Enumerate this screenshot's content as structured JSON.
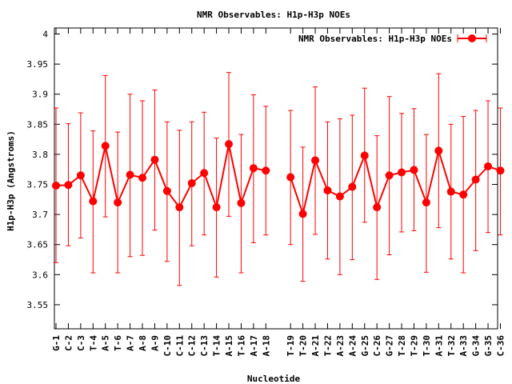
{
  "chart_data": {
    "type": "line",
    "title": "NMR Observables: H1p-H3p NOEs",
    "xlabel": "Nucleotide",
    "ylabel": "H1p-H3p (Angstroms)",
    "ylim": [
      3.51,
      4.01
    ],
    "y_ticks": [
      "3.55",
      "3.6",
      "3.65",
      "3.7",
      "3.75",
      "3.8",
      "3.85",
      "3.9",
      "3.95",
      "4"
    ],
    "legend": {
      "label": "NMR Observables: H1p-H3p NOEs",
      "position": "top-right"
    },
    "grid": false,
    "colors": {
      "series": "#ff0000",
      "axis": "#000000"
    },
    "categories": [
      "G-1",
      "C-2",
      "C-3",
      "T-4",
      "A-5",
      "T-6",
      "A-7",
      "A-8",
      "A-9",
      "C-10",
      "C-11",
      "C-12",
      "C-13",
      "T-14",
      "A-15",
      "T-16",
      "A-17",
      "A-18",
      "T-19",
      "T-20",
      "A-21",
      "T-22",
      "A-23",
      "A-24",
      "G-25",
      "C-26",
      "G-27",
      "T-28",
      "T-29",
      "T-30",
      "A-31",
      "T-32",
      "A-33",
      "G-34",
      "G-35",
      "C-36"
    ],
    "series": [
      {
        "values": [
          3.748,
          3.749,
          3.765,
          3.722,
          3.814,
          3.72,
          3.766,
          3.761,
          3.791,
          3.739,
          3.712,
          3.752,
          3.769,
          3.712,
          3.817,
          3.719,
          3.777,
          3.773,
          3.762,
          3.701,
          3.79,
          3.74,
          3.73,
          3.746,
          3.798,
          3.712,
          3.765,
          3.77,
          3.774,
          3.72,
          3.806,
          3.738,
          3.733,
          3.758,
          3.78,
          3.773
        ],
        "err_low": [
          3.62,
          3.648,
          3.661,
          3.603,
          3.696,
          3.603,
          3.63,
          3.632,
          3.674,
          3.622,
          3.582,
          3.648,
          3.666,
          3.596,
          3.697,
          3.603,
          3.653,
          3.666,
          3.65,
          3.589,
          3.667,
          3.626,
          3.6,
          3.625,
          3.687,
          3.592,
          3.633,
          3.671,
          3.673,
          3.604,
          3.678,
          3.626,
          3.603,
          3.64,
          3.67,
          3.666
        ],
        "err_high": [
          3.877,
          3.851,
          3.869,
          3.839,
          3.931,
          3.837,
          3.9,
          3.889,
          3.907,
          3.854,
          3.84,
          3.854,
          3.87,
          3.827,
          3.936,
          3.833,
          3.899,
          3.88,
          3.873,
          3.812,
          3.912,
          3.854,
          3.859,
          3.865,
          3.91,
          3.831,
          3.896,
          3.868,
          3.876,
          3.833,
          3.934,
          3.85,
          3.863,
          3.873,
          3.889,
          3.877
        ]
      }
    ]
  }
}
